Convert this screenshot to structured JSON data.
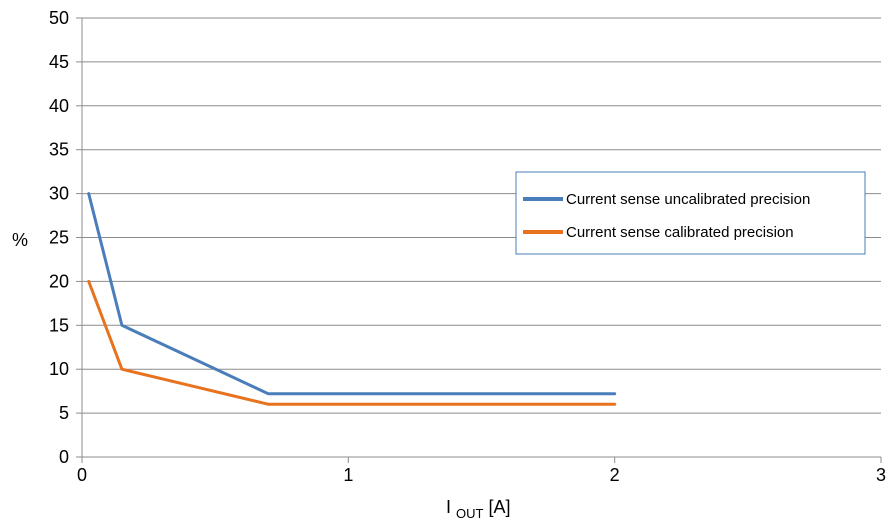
{
  "chart_data": {
    "type": "line",
    "xlabel": {
      "main": "I",
      "sub": "OUT",
      "unit": " [A]"
    },
    "ylabel": "%",
    "xlim": [
      0,
      3
    ],
    "ylim": [
      0,
      50
    ],
    "xticks": [
      "0",
      "1",
      "2",
      "3"
    ],
    "yticks": [
      "0",
      "5",
      "10",
      "15",
      "20",
      "25",
      "30",
      "35",
      "40",
      "45",
      "50"
    ],
    "grid": "horizontal",
    "legend_position": "right",
    "series": [
      {
        "name": "Current sense uncalibrated precision",
        "color": "#4a7ebb",
        "x": [
          0.025,
          0.15,
          0.7,
          2.0
        ],
        "y": [
          30,
          15,
          7.2,
          7.2
        ]
      },
      {
        "name": "Current sense calibrated precision",
        "color": "#e8731f",
        "x": [
          0.025,
          0.15,
          0.7,
          2.0
        ],
        "y": [
          20,
          10,
          6,
          6
        ]
      }
    ]
  }
}
